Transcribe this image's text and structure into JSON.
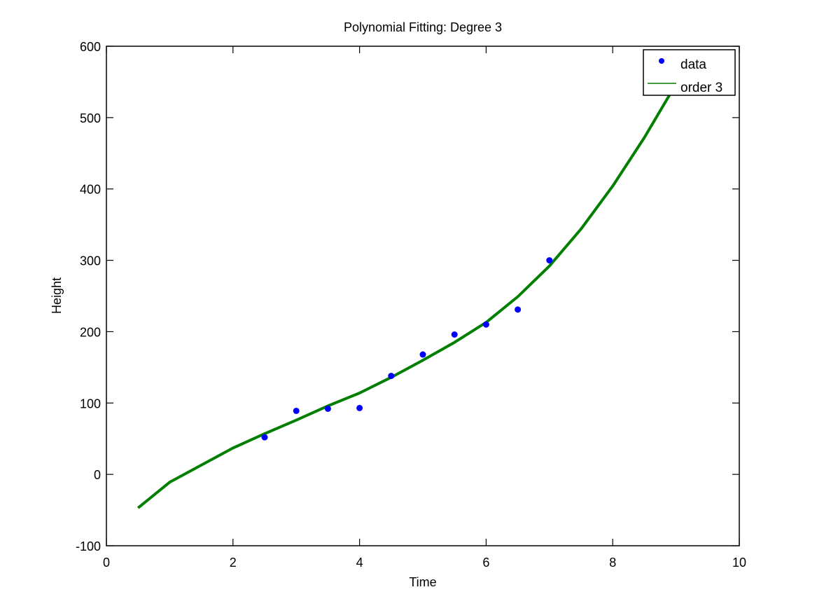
{
  "chart_data": {
    "type": "scatter",
    "title": "Polynomial Fitting: Degree 3",
    "xlabel": "Time",
    "ylabel": "Height",
    "xlim": [
      0,
      10
    ],
    "ylim": [
      -100,
      600
    ],
    "xticks": [
      0,
      2,
      4,
      6,
      8,
      10
    ],
    "yticks": [
      -100,
      0,
      100,
      200,
      300,
      400,
      500,
      600
    ],
    "grid": false,
    "legend_position": "top-right",
    "series": [
      {
        "name": "data",
        "kind": "markers",
        "color": "#0000ff",
        "x": [
          2.5,
          3.0,
          3.5,
          4.0,
          4.5,
          5.0,
          5.5,
          6.0,
          6.5,
          7.0
        ],
        "y": [
          52,
          89,
          92,
          93,
          138,
          168,
          196,
          210,
          231,
          300
        ]
      },
      {
        "name": "order 3",
        "kind": "line",
        "color": "#007f00",
        "x": [
          0.5,
          1.0,
          1.5,
          2.0,
          2.5,
          3.0,
          3.5,
          4.0,
          4.5,
          5.0,
          5.5,
          6.0,
          6.5,
          7.0,
          7.5,
          8.0,
          8.5,
          9.0,
          9.12
        ],
        "y": [
          -47,
          -11,
          13,
          37,
          57,
          76,
          96,
          114,
          136,
          160,
          185,
          213,
          249,
          292,
          344,
          404,
          472,
          547,
          565
        ]
      }
    ]
  }
}
